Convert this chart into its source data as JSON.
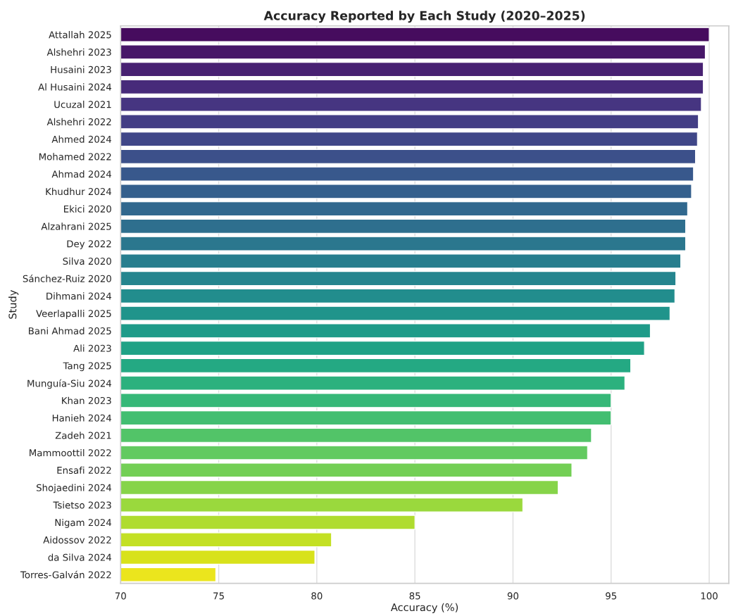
{
  "chart_data": {
    "type": "bar",
    "orientation": "horizontal",
    "title": "Accuracy Reported by Each Study (2020–2025)",
    "xlabel": "Accuracy (%)",
    "ylabel": "Study",
    "categories": [
      "Attallah 2025",
      "Alshehri 2023",
      "Husaini 2023",
      "Al Husaini 2024",
      "Ucuzal 2021",
      "Alshehri 2022",
      "Ahmed 2024",
      "Mohamed 2022",
      "Ahmad 2024",
      "Khudhur 2024",
      "Ekici 2020",
      "Alzahrani 2025",
      "Dey 2022",
      "Silva 2020",
      "Sánchez-Ruiz 2020",
      "Dihmani 2024",
      "Veerlapalli 2025",
      "Bani Ahmad 2025",
      "Ali 2023",
      "Tang 2025",
      "Munguía-Siu 2024",
      "Khan 2023",
      "Hanieh 2024",
      "Zadeh 2021",
      "Mammoottil 2022",
      "Ensafi 2022",
      "Shojaedini 2024",
      "Tsietso 2023",
      "Nigam 2024",
      "Aidossov 2022",
      "da Silva 2024",
      "Torres-Galván 2022"
    ],
    "values": [
      100.0,
      99.8,
      99.7,
      99.7,
      99.6,
      99.45,
      99.4,
      99.3,
      99.2,
      99.1,
      98.9,
      98.8,
      98.8,
      98.55,
      98.3,
      98.25,
      98.0,
      97.0,
      96.7,
      96.0,
      95.7,
      95.0,
      95.0,
      94.0,
      93.8,
      93.0,
      92.3,
      90.5,
      85.0,
      80.75,
      79.9,
      74.85
    ],
    "colors": [
      "#460c5e",
      "#471768",
      "#482172",
      "#472b7a",
      "#463581",
      "#433e85",
      "#404788",
      "#3c508a",
      "#38588c",
      "#35608d",
      "#31688e",
      "#2e6f8e",
      "#2b778e",
      "#287e8e",
      "#25858e",
      "#228d8d",
      "#20948b",
      "#1e9b89",
      "#20a286",
      "#24a983",
      "#2cb17e",
      "#36b878",
      "#43be71",
      "#52c468",
      "#62ca60",
      "#73cf55",
      "#86d449",
      "#9ad93d",
      "#afdc2f",
      "#c3e024",
      "#d8e21b",
      "#ebe51d"
    ],
    "xlim": [
      70,
      101.0
    ],
    "xticks": [
      70,
      75,
      80,
      85,
      90,
      95,
      100
    ],
    "grid": "x",
    "legend": false
  }
}
